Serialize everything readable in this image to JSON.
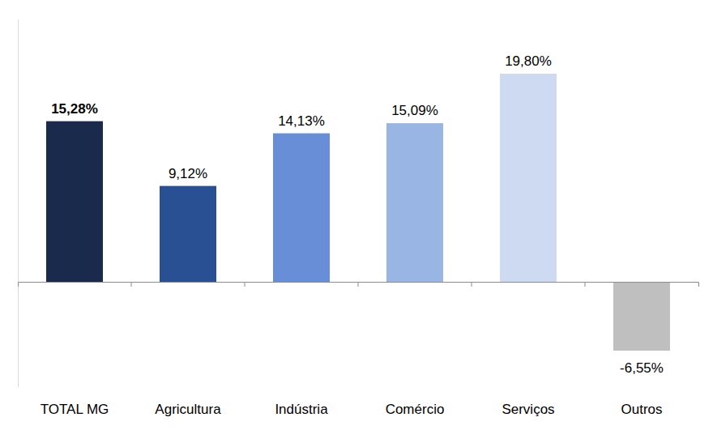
{
  "chart_data": {
    "type": "bar",
    "categories": [
      "TOTAL MG",
      "Agricultura",
      "Indústria",
      "Comércio",
      "Serviços",
      "Outros"
    ],
    "values": [
      15.28,
      9.12,
      14.13,
      15.09,
      19.8,
      -6.55
    ],
    "value_labels": [
      "15,28%",
      "9,12%",
      "14,13%",
      "15,09%",
      "19,80%",
      "-6,55%"
    ],
    "colors": [
      "#1a2a4d",
      "#2a5094",
      "#678ed6",
      "#98b5e3",
      "#cddaf2",
      "#bfbfbf"
    ],
    "ylim": [
      -10,
      25
    ],
    "data_labels": true,
    "tick_labels": "x"
  }
}
